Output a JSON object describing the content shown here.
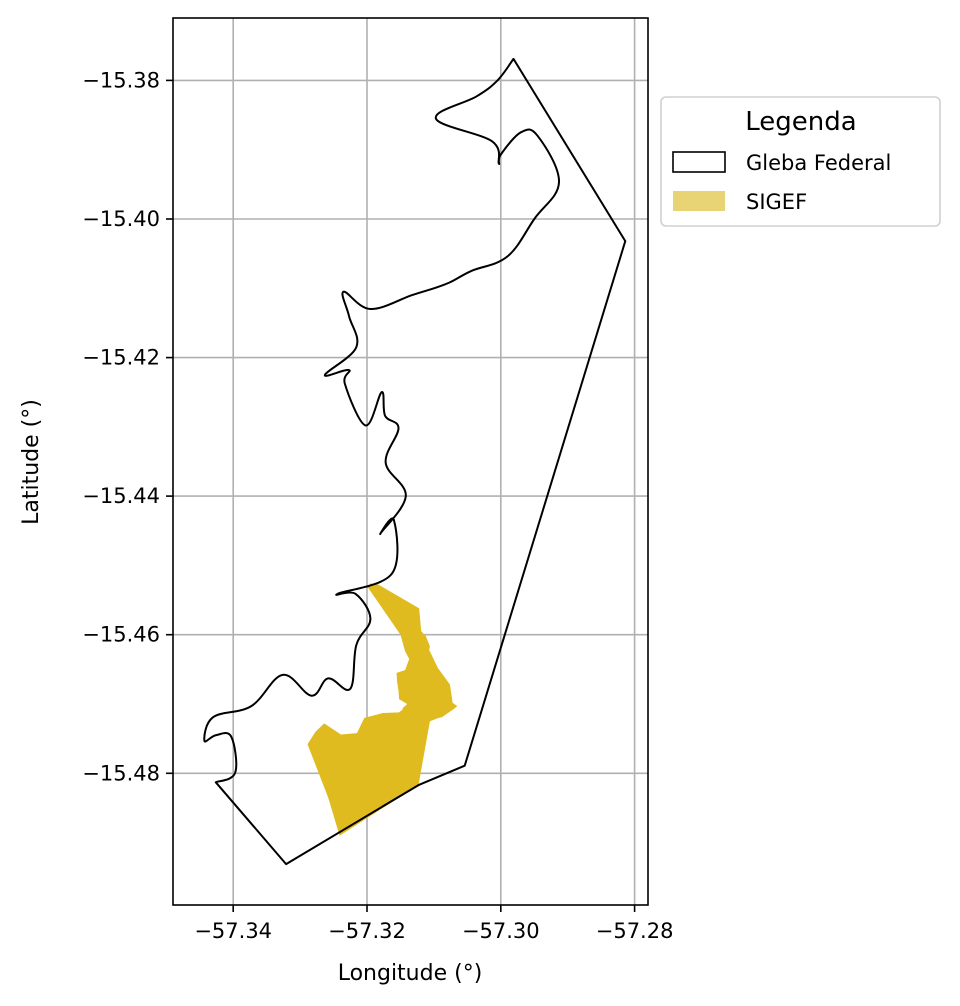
{
  "chart_data": {
    "type": "map",
    "xlabel": "Longitude (°)",
    "ylabel": "Latitude (°)",
    "xlim": [
      -57.349,
      -57.278
    ],
    "ylim": [
      -15.499,
      -15.371
    ],
    "x_ticks": [
      -57.34,
      -57.32,
      -57.3,
      -57.28
    ],
    "x_tick_labels": [
      "−57.34",
      "−57.32",
      "−57.30",
      "−57.28"
    ],
    "y_ticks": [
      -15.38,
      -15.4,
      -15.42,
      -15.44,
      -15.46,
      -15.48
    ],
    "y_tick_labels": [
      "−15.38",
      "−15.40",
      "−15.42",
      "−15.44",
      "−15.46",
      "−15.48"
    ],
    "grid": true,
    "legend": {
      "title": "Legenda",
      "placement": "outside-upper-right",
      "entries": [
        {
          "label": "Gleba Federal",
          "style": "outline",
          "edge_color": "#000000",
          "fill_color": "#ffffff"
        },
        {
          "label": "SIGEF",
          "style": "filled",
          "fill_color": "#e8d474"
        }
      ]
    },
    "colors": {
      "gleba_outline": "#000000",
      "sigef_fill": "#dfbb1f",
      "grid": "#b0b0b0"
    },
    "series": [
      {
        "name": "Gleba Federal",
        "geometry": "polygon",
        "coordinates": [
          [
            -57.2981,
            -15.3769
          ],
          [
            -57.2814,
            -15.4032
          ],
          [
            -57.3054,
            -15.4789
          ],
          [
            -57.3123,
            -15.4817
          ],
          [
            -57.3321,
            -15.4931
          ],
          [
            -57.3426,
            -15.4813
          ],
          [
            -57.3397,
            -15.4799
          ],
          [
            -57.3403,
            -15.4747
          ],
          [
            -57.3426,
            -15.4745
          ],
          [
            -57.3443,
            -15.4753
          ],
          [
            -57.343,
            -15.4719
          ],
          [
            -57.3373,
            -15.4703
          ],
          [
            -57.3326,
            -15.4658
          ],
          [
            -57.3283,
            -15.4688
          ],
          [
            -57.3258,
            -15.4663
          ],
          [
            -57.3225,
            -15.4678
          ],
          [
            -57.3216,
            -15.4615
          ],
          [
            -57.3195,
            -15.4577
          ],
          [
            -57.3217,
            -15.4541
          ],
          [
            -57.3244,
            -15.4541
          ],
          [
            -57.3163,
            -15.4512
          ],
          [
            -57.316,
            -15.4434
          ],
          [
            -57.318,
            -15.4454
          ],
          [
            -57.3142,
            -15.44
          ],
          [
            -57.3172,
            -15.4352
          ],
          [
            -57.3153,
            -15.4302
          ],
          [
            -57.3173,
            -15.4284
          ],
          [
            -57.3178,
            -15.425
          ],
          [
            -57.3202,
            -15.4298
          ],
          [
            -57.3233,
            -15.4238
          ],
          [
            -57.3227,
            -15.4218
          ],
          [
            -57.3263,
            -15.4225
          ],
          [
            -57.3216,
            -15.4185
          ],
          [
            -57.3227,
            -15.414
          ],
          [
            -57.3235,
            -15.4105
          ],
          [
            -57.3195,
            -15.413
          ],
          [
            -57.3133,
            -15.411
          ],
          [
            -57.31,
            -15.41
          ],
          [
            -57.3075,
            -15.4091
          ],
          [
            -57.3044,
            -15.4075
          ],
          [
            -57.299,
            -15.4054
          ],
          [
            -57.295,
            -15.4
          ],
          [
            -57.2913,
            -15.3947
          ],
          [
            -57.2945,
            -15.388
          ],
          [
            -57.297,
            -15.3875
          ],
          [
            -57.3,
            -15.3907
          ],
          [
            -57.3003,
            -15.392
          ],
          [
            -57.3013,
            -15.3888
          ],
          [
            -57.3097,
            -15.3855
          ],
          [
            -57.3036,
            -15.3823
          ],
          [
            -57.3005,
            -15.38
          ]
        ]
      },
      {
        "name": "SIGEF",
        "geometry": "polygon",
        "coordinates": [
          [
            -57.32,
            -15.453
          ],
          [
            -57.3195,
            -15.4526
          ],
          [
            -57.3184,
            -15.4527
          ],
          [
            -57.3122,
            -15.4562
          ],
          [
            -57.3119,
            -15.4595
          ],
          [
            -57.3112,
            -15.4602
          ],
          [
            -57.3106,
            -15.4617
          ],
          [
            -57.3107,
            -15.4622
          ],
          [
            -57.3094,
            -15.4648
          ],
          [
            -57.3076,
            -15.4672
          ],
          [
            -57.3072,
            -15.4698
          ],
          [
            -57.3065,
            -15.4703
          ],
          [
            -57.307,
            -15.4707
          ],
          [
            -57.3079,
            -15.4713
          ],
          [
            -57.3088,
            -15.4719
          ],
          [
            -57.3093,
            -15.472
          ],
          [
            -57.3106,
            -15.4725
          ],
          [
            -57.3123,
            -15.4817
          ],
          [
            -57.3241,
            -15.489
          ],
          [
            -57.3258,
            -15.4835
          ],
          [
            -57.3289,
            -15.4758
          ],
          [
            -57.3277,
            -15.474
          ],
          [
            -57.3264,
            -15.4728
          ],
          [
            -57.3239,
            -15.4744
          ],
          [
            -57.3215,
            -15.4742
          ],
          [
            -57.3204,
            -15.472
          ],
          [
            -57.3176,
            -15.4713
          ],
          [
            -57.3152,
            -15.4712
          ],
          [
            -57.3147,
            -15.4708
          ],
          [
            -57.3143,
            -15.472
          ],
          [
            -57.314,
            -15.4732
          ],
          [
            -57.3137,
            -15.4745
          ],
          [
            -57.3136,
            -15.4758
          ],
          [
            -57.3148,
            -15.4752
          ],
          [
            -57.3142,
            -15.474
          ],
          [
            -57.3147,
            -15.4706
          ],
          [
            -57.314,
            -15.47
          ],
          [
            -57.3152,
            -15.4693
          ],
          [
            -57.3153,
            -15.4681
          ],
          [
            -57.3155,
            -15.4668
          ],
          [
            -57.3156,
            -15.4655
          ],
          [
            -57.3143,
            -15.4651
          ],
          [
            -57.3137,
            -15.4635
          ],
          [
            -57.3143,
            -15.4624
          ],
          [
            -57.315,
            -15.46
          ]
        ]
      }
    ]
  }
}
